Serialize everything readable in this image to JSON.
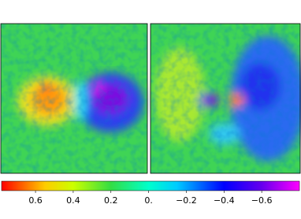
{
  "chart_data": {
    "type": "heatmap",
    "colorbar": {
      "clim": [
        0.78,
        -0.8
      ],
      "colormap": [
        {
          "value": 0.78,
          "color": "#ff0000"
        },
        {
          "value": 0.55,
          "color": "#ffcc00"
        },
        {
          "value": 0.4,
          "color": "#ccff00"
        },
        {
          "value": 0.2,
          "color": "#33dd44"
        },
        {
          "value": 0.0,
          "color": "#00ffcc"
        },
        {
          "value": -0.15,
          "color": "#00ccff"
        },
        {
          "value": -0.4,
          "color": "#0000ff"
        },
        {
          "value": -0.6,
          "color": "#6600ee"
        },
        {
          "value": -0.8,
          "color": "#ff00ff"
        }
      ],
      "ticks": [
        0.6,
        0.4,
        0.2,
        {
          "value": 0,
          "label": "0."
        },
        {
          "value": -0.2,
          "label": "−0.2"
        },
        {
          "value": -0.4,
          "label": "−0.4"
        },
        {
          "value": -0.6,
          "label": "−0.6"
        }
      ]
    }
  }
}
